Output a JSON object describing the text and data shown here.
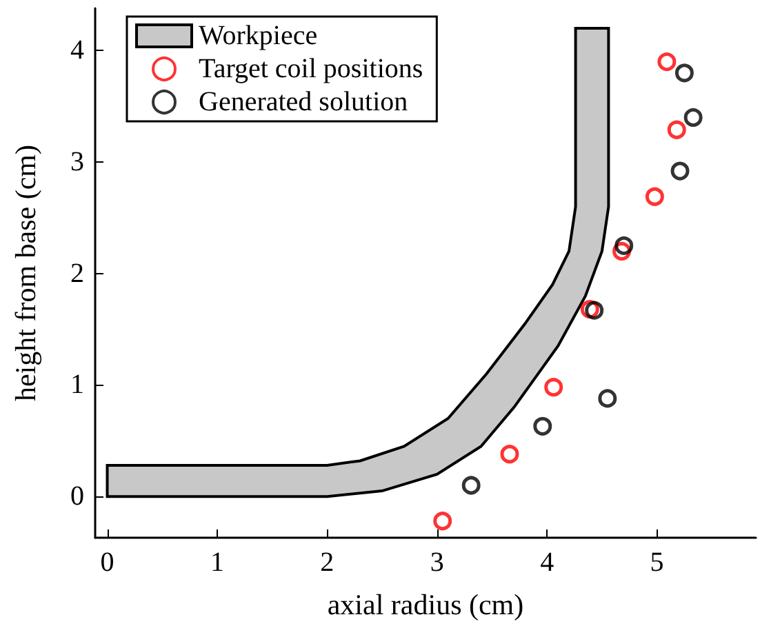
{
  "chart_data": {
    "type": "scatter",
    "xlabel": "axial radius (cm)",
    "ylabel": "height from base (cm)",
    "xlim": [
      -0.11,
      5.9
    ],
    "ylim": [
      -0.37,
      4.38
    ],
    "xticks": [
      0,
      1,
      2,
      3,
      4,
      5
    ],
    "yticks": [
      0,
      1,
      2,
      3,
      4
    ],
    "grid": false,
    "legend": "top left",
    "series": [
      {
        "name": "Workpiece",
        "type": "area",
        "color": "#c8c8c8",
        "x": [
          0,
          2,
          2.5,
          3,
          3.4,
          3.7,
          4.1,
          4.35,
          4.5,
          4.56,
          4.56,
          4.26,
          4.26,
          4.2,
          4.05,
          3.8,
          3.45,
          3.1,
          2.7,
          2.3,
          2,
          0
        ],
        "values": [
          0,
          0,
          0.05,
          0.2,
          0.45,
          0.8,
          1.35,
          1.8,
          2.2,
          2.6,
          4.2,
          4.2,
          2.6,
          2.2,
          1.9,
          1.55,
          1.1,
          0.7,
          0.45,
          0.32,
          0.28,
          0.28
        ]
      },
      {
        "name": "Target coil positions",
        "marker": "circle",
        "color": "#ff0000",
        "x": [
          3.05,
          3.66,
          4.06,
          4.39,
          4.68,
          4.98,
          5.18,
          5.09
        ],
        "values": [
          -0.22,
          0.38,
          0.98,
          1.68,
          2.2,
          2.69,
          3.29,
          3.9
        ]
      },
      {
        "name": "Generated solution",
        "marker": "circle",
        "color": "#000000",
        "x": [
          3.31,
          3.96,
          4.55,
          4.43,
          4.7,
          5.21,
          5.33,
          5.25
        ],
        "values": [
          0.1,
          0.63,
          0.88,
          1.67,
          2.25,
          2.92,
          3.4,
          3.8
        ]
      }
    ]
  }
}
